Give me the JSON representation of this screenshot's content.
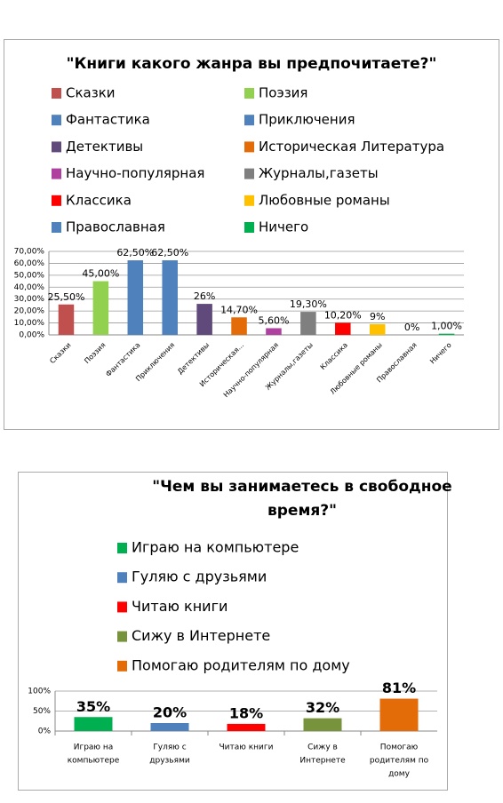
{
  "chart_data": [
    {
      "type": "bar",
      "title": "\"Книги какого жанра вы предпочитаете?\"",
      "categories": [
        "Сказки",
        "Поэзия",
        "Фантастика",
        "Приключения",
        "Детективы",
        "Историческая...",
        "Научно-популярная",
        "Журналы,газеты",
        "Классика",
        "Любовные романы",
        "Православная",
        "Ничего"
      ],
      "legend": [
        "Сказки",
        "Поэзия",
        "Фантастика",
        "Приключения",
        "Детективы",
        "Историческая Литература",
        "Научно-популярная",
        "Журналы,газеты",
        "Классика",
        "Любовные романы",
        "Православная",
        "Ничего"
      ],
      "values": [
        25.5,
        45,
        62.5,
        62.5,
        26,
        14.7,
        5.6,
        19.3,
        10.2,
        9,
        0,
        1
      ],
      "value_labels": [
        "25,50%",
        "45,00%",
        "62,50%",
        "62,50%",
        "26%",
        "14,70%",
        "5,60%",
        "19,30%",
        "10,20%",
        "9%",
        "0%",
        "1,00%"
      ],
      "colors": [
        "#c0504d",
        "#92d050",
        "#4f81bd",
        "#4f81bd",
        "#604a7b",
        "#e36c09",
        "#b040a0",
        "#7f7f7f",
        "#ff0000",
        "#ffc000",
        "#4f81bd",
        "#00b050"
      ],
      "ylim": [
        0,
        70
      ],
      "yticks": [
        {
          "value": 0,
          "label": "0,00%"
        },
        {
          "value": 10,
          "label": "10,00%"
        },
        {
          "value": 20,
          "label": "20,00%"
        },
        {
          "value": 30,
          "label": "30,00%"
        },
        {
          "value": 40,
          "label": "40,00%"
        },
        {
          "value": 50,
          "label": "50,00%"
        },
        {
          "value": 60,
          "label": "60,00%"
        },
        {
          "value": 70,
          "label": "70,00%"
        }
      ],
      "grid": true
    },
    {
      "type": "bar",
      "title": [
        "\"Чем вы занимаетесь в свободное",
        "время?\""
      ],
      "categories": [
        [
          "Играю на",
          "компьютере"
        ],
        [
          "Гуляю с",
          "друзьями"
        ],
        [
          "Читаю книги"
        ],
        [
          "Сижу в",
          "Интернете"
        ],
        [
          "Помогаю",
          "родителям по",
          "дому"
        ]
      ],
      "legend": [
        "Играю на компьютере",
        "Гуляю с друзьями",
        "Читаю книги",
        "Сижу в Интернете",
        "Помогаю родителям по дому"
      ],
      "values": [
        35,
        20,
        18,
        32,
        81
      ],
      "value_labels": [
        "35%",
        "20%",
        "18%",
        "32%",
        "81%"
      ],
      "colors": [
        "#00b050",
        "#4f81bd",
        "#ff0000",
        "#77933c",
        "#e36c09"
      ],
      "ylim": [
        0,
        100
      ],
      "yticks": [
        {
          "value": 0,
          "label": "0%"
        },
        {
          "value": 50,
          "label": "50%"
        },
        {
          "value": 100,
          "label": "100%"
        }
      ],
      "grid": true
    }
  ]
}
